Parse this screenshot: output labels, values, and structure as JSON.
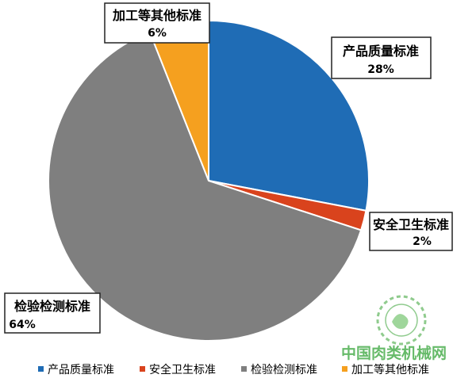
{
  "chart_data": {
    "type": "pie",
    "categories": [
      "产品质量标准",
      "安全卫生标准",
      "检验检测标准",
      "加工等其他标准"
    ],
    "values": [
      28,
      2,
      64,
      6
    ],
    "value_labels": [
      "28%",
      "2%",
      "64%",
      "6%"
    ],
    "colors": [
      "#1f6cb5",
      "#d9431d",
      "#7f7f7f",
      "#f5a01f"
    ],
    "start_angle_deg": 0,
    "direction": "clockwise",
    "legend_position": "bottom"
  },
  "watermark": {
    "text": "中国肉类机械网"
  }
}
